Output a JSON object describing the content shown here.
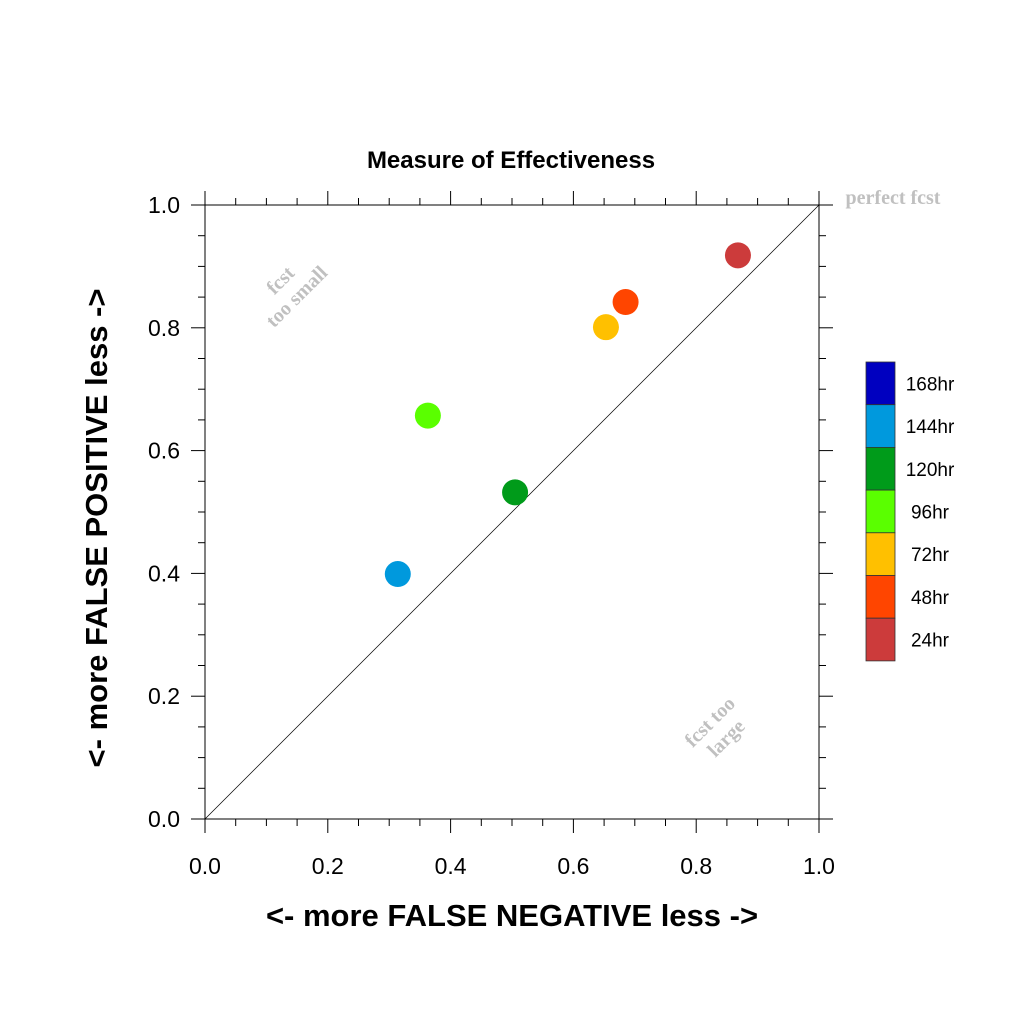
{
  "chart_data": {
    "type": "scatter",
    "title": "Measure of Effectiveness",
    "xlabel": "<- more   FALSE NEGATIVE   less ->",
    "ylabel": "<- more   FALSE POSITIVE   less ->",
    "xlim": [
      0,
      1
    ],
    "ylim": [
      0,
      1
    ],
    "x_ticks": [
      "0.0",
      "0.2",
      "0.4",
      "0.6",
      "0.8",
      "1.0"
    ],
    "y_ticks": [
      "0.0",
      "0.2",
      "0.4",
      "0.6",
      "0.8",
      "1.0"
    ],
    "grid": false,
    "diagonal_reference_line": true,
    "points": [
      {
        "label": "24hr",
        "x": 0.868,
        "y": 0.918,
        "color": "#cc3b3b"
      },
      {
        "label": "48hr",
        "x": 0.685,
        "y": 0.842,
        "color": "#ff4500"
      },
      {
        "label": "72hr",
        "x": 0.653,
        "y": 0.801,
        "color": "#ffc000"
      },
      {
        "label": "96hr",
        "x": 0.363,
        "y": 0.657,
        "color": "#5aff00"
      },
      {
        "label": "120hr",
        "x": 0.505,
        "y": 0.532,
        "color": "#009b1a"
      },
      {
        "label": "144hr",
        "x": 0.314,
        "y": 0.399,
        "color": "#0099dd"
      }
    ],
    "legend": {
      "placement": "right",
      "entries": [
        {
          "label": "168hr",
          "color": "#0000c0"
        },
        {
          "label": "144hr",
          "color": "#0099dd"
        },
        {
          "label": "120hr",
          "color": "#009b1a"
        },
        {
          "label": "96hr",
          "color": "#5aff00"
        },
        {
          "label": "72hr",
          "color": "#ffc000"
        },
        {
          "label": "48hr",
          "color": "#ff4500"
        },
        {
          "label": "24hr",
          "color": "#cc3b3b"
        }
      ]
    },
    "annotations": {
      "perfect": "perfect fcst",
      "too_small_1": "fcst",
      "too_small_2": "too small",
      "too_large_1": "fcst too",
      "too_large_2": "large"
    }
  }
}
